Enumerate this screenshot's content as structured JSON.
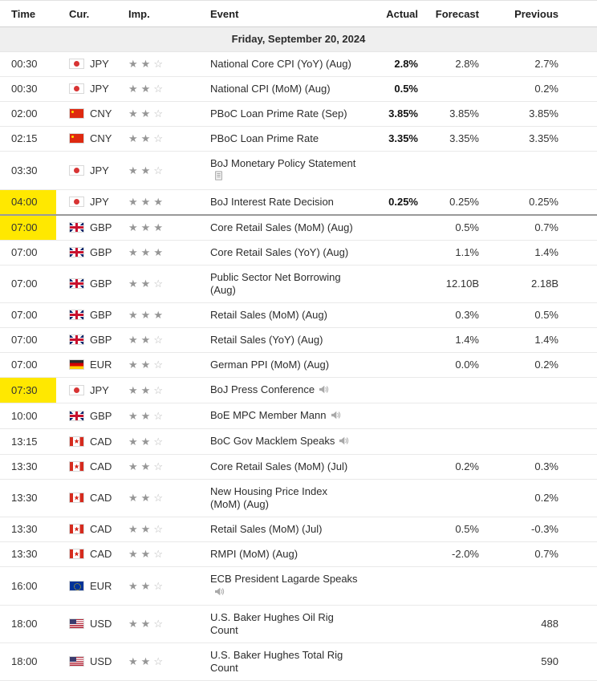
{
  "colors": {
    "time_highlight": "#ffe800",
    "star_filled": "#969696",
    "star_empty": "#b8b8b8",
    "now_divider": "#9a9a9a"
  },
  "header": {
    "columns": [
      "Time",
      "Cur.",
      "Imp.",
      "Event",
      "Actual",
      "Forecast",
      "Previous"
    ]
  },
  "date_row": {
    "label": "Friday, September 20, 2024"
  },
  "rows": [
    {
      "time": "00:30",
      "flag": "japan",
      "currency": "JPY",
      "importance": 2,
      "event": "National Core CPI (YoY) (Aug)",
      "actual": "2.8%",
      "forecast": "2.8%",
      "previous": "2.7%"
    },
    {
      "time": "00:30",
      "flag": "japan",
      "currency": "JPY",
      "importance": 2,
      "event": "National CPI (MoM) (Aug)",
      "actual": "0.5%",
      "forecast": "",
      "previous": "0.2%"
    },
    {
      "time": "02:00",
      "flag": "china",
      "currency": "CNY",
      "importance": 2,
      "event": "PBoC Loan Prime Rate (Sep)",
      "actual": "3.85%",
      "forecast": "3.85%",
      "previous": "3.85%"
    },
    {
      "time": "02:15",
      "flag": "china",
      "currency": "CNY",
      "importance": 2,
      "event": "PBoC Loan Prime Rate",
      "actual": "3.35%",
      "forecast": "3.35%",
      "previous": "3.35%"
    },
    {
      "time": "03:30",
      "flag": "japan",
      "currency": "JPY",
      "importance": 2,
      "event": "BoJ Monetary Policy Statement",
      "icon": "report-icon",
      "actual": "",
      "forecast": "",
      "previous": ""
    },
    {
      "time": "04:00",
      "highlight": true,
      "now_divider": true,
      "flag": "japan",
      "currency": "JPY",
      "importance": 3,
      "event": "BoJ Interest Rate Decision",
      "actual": "0.25%",
      "forecast": "0.25%",
      "previous": "0.25%"
    },
    {
      "time": "07:00",
      "highlight": true,
      "flag": "uk",
      "currency": "GBP",
      "importance": 3,
      "event": "Core Retail Sales (MoM) (Aug)",
      "actual": "",
      "forecast": "0.5%",
      "previous": "0.7%"
    },
    {
      "time": "07:00",
      "flag": "uk",
      "currency": "GBP",
      "importance": 3,
      "event": "Core Retail Sales (YoY) (Aug)",
      "actual": "",
      "forecast": "1.1%",
      "previous": "1.4%"
    },
    {
      "time": "07:00",
      "flag": "uk",
      "currency": "GBP",
      "importance": 2,
      "event": "Public Sector Net Borrowing (Aug)",
      "actual": "",
      "forecast": "12.10B",
      "previous": "2.18B"
    },
    {
      "time": "07:00",
      "flag": "uk",
      "currency": "GBP",
      "importance": 3,
      "event": "Retail Sales (MoM) (Aug)",
      "actual": "",
      "forecast": "0.3%",
      "previous": "0.5%"
    },
    {
      "time": "07:00",
      "flag": "uk",
      "currency": "GBP",
      "importance": 2,
      "event": "Retail Sales (YoY) (Aug)",
      "actual": "",
      "forecast": "1.4%",
      "previous": "1.4%"
    },
    {
      "time": "07:00",
      "flag": "germany",
      "currency": "EUR",
      "importance": 2,
      "event": "German PPI (MoM) (Aug)",
      "actual": "",
      "forecast": "0.0%",
      "previous": "0.2%"
    },
    {
      "time": "07:30",
      "highlight": true,
      "flag": "japan",
      "currency": "JPY",
      "importance": 2,
      "event": "BoJ Press Conference",
      "icon": "speaker-icon",
      "actual": "",
      "forecast": "",
      "previous": ""
    },
    {
      "time": "10:00",
      "flag": "uk",
      "currency": "GBP",
      "importance": 2,
      "event": "BoE MPC Member Mann",
      "icon": "speaker-icon",
      "actual": "",
      "forecast": "",
      "previous": ""
    },
    {
      "time": "13:15",
      "flag": "canada",
      "currency": "CAD",
      "importance": 2,
      "event": "BoC Gov Macklem Speaks",
      "icon": "speaker-icon",
      "actual": "",
      "forecast": "",
      "previous": ""
    },
    {
      "time": "13:30",
      "flag": "canada",
      "currency": "CAD",
      "importance": 2,
      "event": "Core Retail Sales (MoM) (Jul)",
      "actual": "",
      "forecast": "0.2%",
      "previous": "0.3%"
    },
    {
      "time": "13:30",
      "flag": "canada",
      "currency": "CAD",
      "importance": 2,
      "event": "New Housing Price Index (MoM) (Aug)",
      "actual": "",
      "forecast": "",
      "previous": "0.2%"
    },
    {
      "time": "13:30",
      "flag": "canada",
      "currency": "CAD",
      "importance": 2,
      "event": "Retail Sales (MoM) (Jul)",
      "actual": "",
      "forecast": "0.5%",
      "previous": "-0.3%"
    },
    {
      "time": "13:30",
      "flag": "canada",
      "currency": "CAD",
      "importance": 2,
      "event": "RMPI (MoM) (Aug)",
      "actual": "",
      "forecast": "-2.0%",
      "previous": "0.7%"
    },
    {
      "time": "16:00",
      "flag": "eu",
      "currency": "EUR",
      "importance": 2,
      "event": "ECB President Lagarde Speaks",
      "icon": "speaker-icon",
      "actual": "",
      "forecast": "",
      "previous": ""
    },
    {
      "time": "18:00",
      "flag": "usa",
      "currency": "USD",
      "importance": 2,
      "event": "U.S. Baker Hughes Oil Rig Count",
      "actual": "",
      "forecast": "",
      "previous": "488"
    },
    {
      "time": "18:00",
      "flag": "usa",
      "currency": "USD",
      "importance": 2,
      "event": "U.S. Baker Hughes Total Rig Count",
      "actual": "",
      "forecast": "",
      "previous": "590"
    }
  ]
}
